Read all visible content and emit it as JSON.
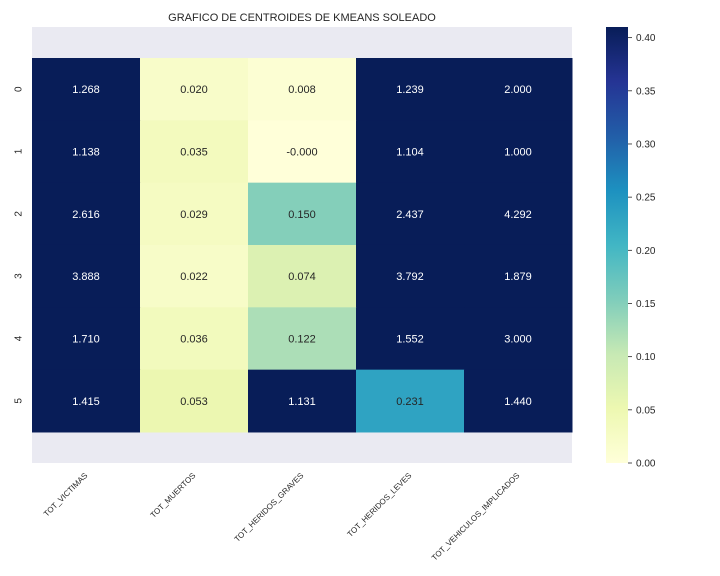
{
  "chart_data": {
    "type": "heatmap",
    "title": "GRAFICO DE CENTROIDES DE KMEANS SOLEADO",
    "columns": [
      "TOT_VICTIMAS",
      "TOT_MUERTOS",
      "TOT_HERIDOS_GRAVES",
      "TOT_HERIDOS_LEVES",
      "TOT_VEHICULOS_IMPLICADOS"
    ],
    "rows": [
      "0",
      "1",
      "2",
      "3",
      "4",
      "5"
    ],
    "values": [
      [
        1.268,
        0.02,
        0.008,
        1.239,
        2.0
      ],
      [
        1.138,
        0.035,
        -0.0,
        1.104,
        1.0
      ],
      [
        2.616,
        0.029,
        0.15,
        2.437,
        4.292
      ],
      [
        3.888,
        0.022,
        0.074,
        3.792,
        1.879
      ],
      [
        1.71,
        0.036,
        0.122,
        1.552,
        3.0
      ],
      [
        1.415,
        0.053,
        1.131,
        0.231,
        1.44
      ]
    ],
    "labels": [
      [
        "1.268",
        "0.020",
        "0.008",
        "1.239",
        "2.000"
      ],
      [
        "1.138",
        "0.035",
        "-0.000",
        "1.104",
        "1.000"
      ],
      [
        "2.616",
        "0.029",
        "0.150",
        "2.437",
        "4.292"
      ],
      [
        "3.888",
        "0.022",
        "0.074",
        "3.792",
        "1.879"
      ],
      [
        "1.710",
        "0.036",
        "0.122",
        "1.552",
        "3.000"
      ],
      [
        "1.415",
        "0.053",
        "1.131",
        "0.231",
        "1.440"
      ]
    ],
    "colorbar": {
      "colormap": "YlGnBu",
      "range": [
        0,
        0.41
      ],
      "ticks": [
        "0.00",
        "0.05",
        "0.10",
        "0.15",
        "0.20",
        "0.25",
        "0.30",
        "0.35",
        "0.40"
      ]
    },
    "colors": {
      "ylgnbu": [
        "#ffffd9",
        "#edf8b1",
        "#c7e9b4",
        "#7fcdbb",
        "#41b6c4",
        "#1d91c0",
        "#225ea8",
        "#253494",
        "#081d58"
      ],
      "band": "#eaeaf2",
      "dark_text": "#262626",
      "light_text": "#ffffff"
    }
  }
}
